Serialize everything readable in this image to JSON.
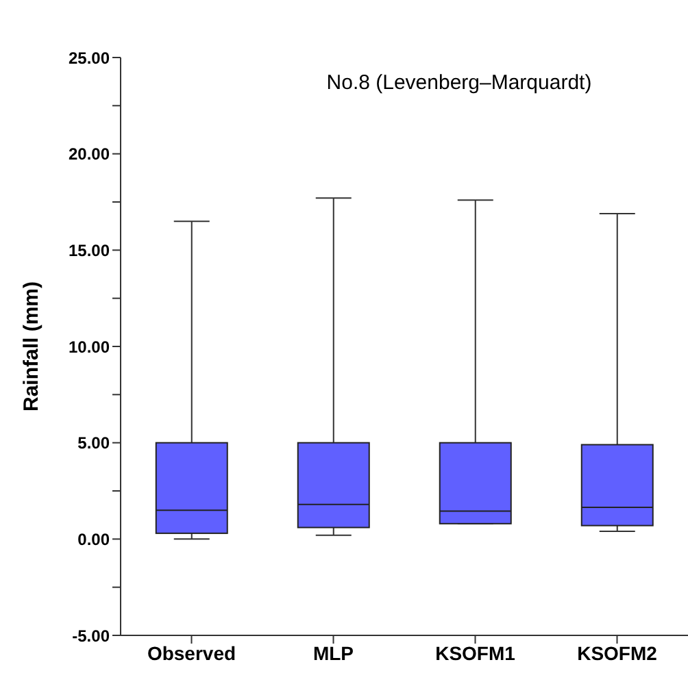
{
  "chart_data": {
    "type": "box",
    "title": "No.8 (Levenberg–Marquardt)",
    "ylabel": "Rainfall (mm)",
    "categories": [
      "Observed",
      "MLP",
      "KSOFM1",
      "KSOFM2"
    ],
    "color": "#6060ff",
    "boxes": [
      {
        "low": 0,
        "q1": 0.3,
        "median": 1.5,
        "q3": 5.0,
        "high": 16.5
      },
      {
        "low": 0.2,
        "q1": 0.6,
        "median": 1.8,
        "q3": 5.0,
        "high": 17.7
      },
      {
        "low": 0.8,
        "q1": 0.8,
        "median": 1.45,
        "q3": 5.0,
        "high": 17.6
      },
      {
        "low": 0.4,
        "q1": 0.7,
        "median": 1.65,
        "q3": 4.9,
        "high": 16.9
      }
    ],
    "ylim": [
      -5,
      25
    ],
    "yticks": [
      {
        "value": -5,
        "label": "-5.00"
      },
      {
        "value": -2.5,
        "label": null
      },
      {
        "value": 0,
        "label": "0.00"
      },
      {
        "value": 2.5,
        "label": null
      },
      {
        "value": 5,
        "label": "5.00"
      },
      {
        "value": 7.5,
        "label": null
      },
      {
        "value": 10,
        "label": "10.00"
      },
      {
        "value": 12.5,
        "label": null
      },
      {
        "value": 15,
        "label": "15.00"
      },
      {
        "value": 17.5,
        "label": null
      },
      {
        "value": 20,
        "label": "20.00"
      },
      {
        "value": 22.5,
        "label": null
      },
      {
        "value": 25,
        "label": "25.00"
      }
    ],
    "grid": false
  }
}
